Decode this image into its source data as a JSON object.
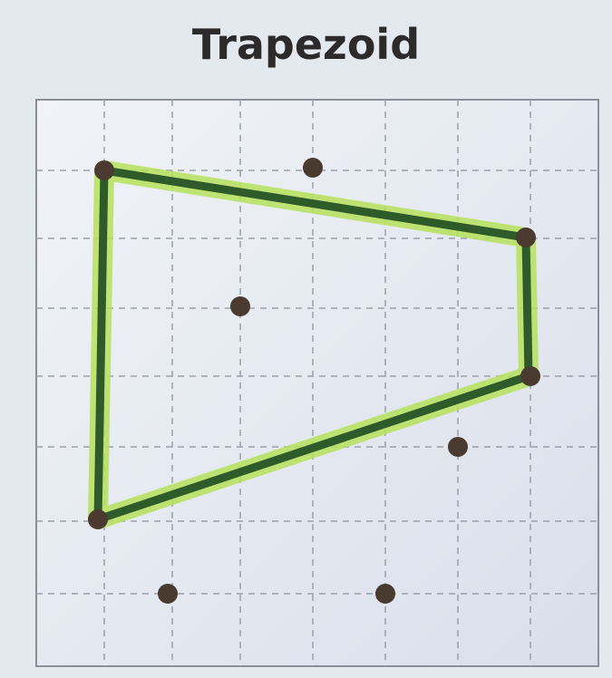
{
  "title": "Trapezoid"
}
